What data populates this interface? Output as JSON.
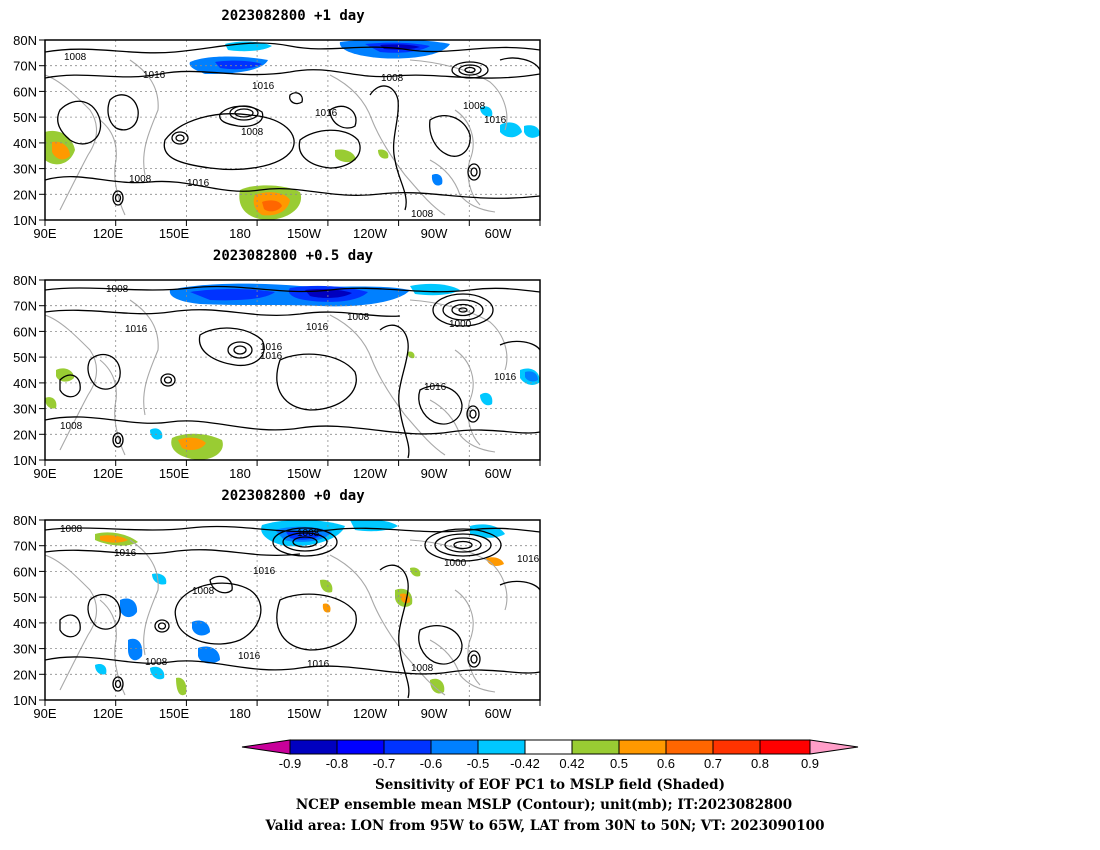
{
  "panels": [
    {
      "title": "2023082800  +1 day",
      "contour_labels": [
        "1008",
        "1016",
        "1008",
        "1016",
        "1008",
        "1016",
        "1008",
        "1016",
        "1008",
        "1016",
        "1008"
      ]
    },
    {
      "title": "2023082800  +0.5 day",
      "contour_labels": [
        "1008",
        "1008",
        "1000",
        "1016",
        "1016",
        "1016",
        "1016",
        "1016",
        "1016",
        "1008"
      ]
    },
    {
      "title": "2023082800  +0 day",
      "contour_labels": [
        "1008",
        "1008",
        "1000",
        "1016",
        "1016",
        "1016",
        "1008",
        "1016",
        "1016",
        "1008",
        "1008"
      ]
    }
  ],
  "axes": {
    "lon_ticks": [
      "90E",
      "120E",
      "150E",
      "180",
      "150W",
      "120W",
      "90W",
      "60W"
    ],
    "lat_ticks": [
      "80N",
      "70N",
      "60N",
      "50N",
      "40N",
      "30N",
      "20N",
      "10N"
    ],
    "lon_range": [
      90,
      300
    ],
    "lat_range": [
      10,
      80
    ]
  },
  "colorbar": {
    "labels": [
      "-0.9",
      "-0.8",
      "-0.7",
      "-0.6",
      "-0.5",
      "-0.42",
      "0.42",
      "0.5",
      "0.6",
      "0.7",
      "0.8",
      "0.9"
    ],
    "colors": [
      "#0000bf",
      "#0000ff",
      "#0033ff",
      "#0080ff",
      "#00c8ff",
      "#ffffff",
      "#99cc33",
      "#ff9900",
      "#ff6600",
      "#ff3300",
      "#ff0000"
    ],
    "low_color": "#c8009a",
    "high_color": "#ff9ec8"
  },
  "caption": {
    "line1": "Sensitivity of EOF PC1 to MSLP field (Shaded)",
    "line2": "NCEP ensemble mean MSLP (Contour); unit(mb); IT:2023082800",
    "line3": "Valid area: LON from 95W to 65W, LAT from 30N to 50N; VT: 2023090100"
  },
  "colors": {
    "contour": "#000000",
    "coast": "#a8a8a8",
    "grid": "#8c8c8c"
  }
}
